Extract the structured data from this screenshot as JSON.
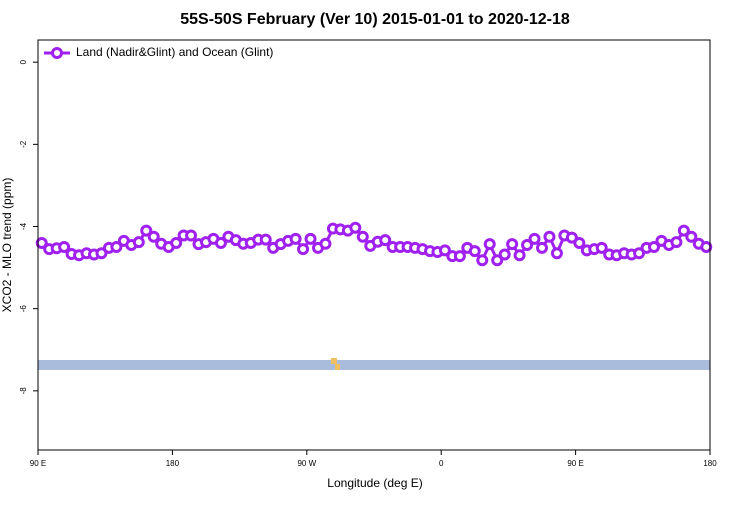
{
  "chart_data": {
    "type": "line",
    "title": "55S-50S February (Ver 10)   2015-01-01 to 2020-12-18",
    "x_label": "Longitude (deg E)",
    "y_label": "XCO2 - MLO trend (ppm)",
    "xlim": [
      90,
      540
    ],
    "xticks": [
      {
        "value": 90,
        "label": "90 E"
      },
      180,
      {
        "value": 270,
        "label": "90 W"
      },
      {
        "value": 360,
        "label": "0"
      },
      {
        "value": 450,
        "label": "90 E"
      },
      {
        "value": 540,
        "label": "180"
      }
    ],
    "ylim": [
      -9.44,
      0.54
    ],
    "yticks": [
      0,
      -2,
      -4,
      -6,
      -8
    ],
    "legend": "top-left",
    "series": [
      {
        "name": "Land (Nadir&Glint) and Ocean (Glint)",
        "color": "#a020f0",
        "x": [
          92.5,
          97.5,
          102.5,
          107.5,
          112.5,
          117.5,
          122.5,
          127.5,
          132.5,
          137.5,
          142.5,
          147.5,
          152.5,
          157.5,
          162.5,
          167.5,
          172.5,
          177.5,
          182.5,
          187.5,
          192.5,
          197.5,
          202.5,
          207.5,
          212.5,
          217.5,
          222.5,
          227.5,
          232.5,
          237.5,
          242.5,
          247.5,
          252.5,
          257.5,
          262.5,
          267.5,
          272.5,
          277.5,
          282.5,
          287.5,
          292.5,
          297.5,
          302.5,
          307.5,
          312.5,
          317.5,
          322.5,
          327.5,
          332.5,
          337.5,
          342.5,
          347.5,
          352.5,
          357.5,
          362.5,
          367.5,
          372.5,
          377.5,
          382.5,
          387.5,
          392.5,
          397.5,
          402.5,
          407.5,
          412.5,
          417.5,
          422.5,
          427.5,
          432.5,
          437.5,
          442.5,
          447.5,
          452.5,
          457.5,
          462.5,
          467.5,
          472.5,
          477.5,
          482.5,
          487.5,
          492.5,
          497.5,
          502.5,
          507.5,
          512.5,
          517.5,
          522.5,
          527.5,
          532.5,
          537.5
        ],
        "values": [
          -4.4,
          -4.55,
          -4.53,
          -4.5,
          -4.67,
          -4.7,
          -4.65,
          -4.68,
          -4.65,
          -4.52,
          -4.5,
          -4.35,
          -4.45,
          -4.38,
          -4.1,
          -4.25,
          -4.42,
          -4.5,
          -4.4,
          -4.22,
          -4.22,
          -4.43,
          -4.38,
          -4.3,
          -4.4,
          -4.25,
          -4.33,
          -4.42,
          -4.4,
          -4.32,
          -4.32,
          -4.52,
          -4.43,
          -4.35,
          -4.3,
          -4.55,
          -4.3,
          -4.52,
          -4.42,
          -4.05,
          -4.07,
          -4.1,
          -4.03,
          -4.25,
          -4.47,
          -4.37,
          -4.33,
          -4.5,
          -4.5,
          -4.5,
          -4.52,
          -4.55,
          -4.6,
          -4.62,
          -4.58,
          -4.72,
          -4.72,
          -4.52,
          -4.6,
          -4.82,
          -4.43,
          -4.82,
          -4.68,
          -4.43,
          -4.7,
          -4.45,
          -4.3,
          -4.52,
          -4.25,
          -4.65,
          -4.22,
          -4.27,
          -4.4,
          -4.58,
          -4.55,
          -4.52,
          -4.68,
          -4.7,
          -4.65,
          -4.68,
          -4.65,
          -4.52,
          -4.5,
          -4.35,
          -4.45,
          -4.38,
          -4.1,
          -4.25,
          -4.42,
          -4.5
        ]
      }
    ]
  }
}
